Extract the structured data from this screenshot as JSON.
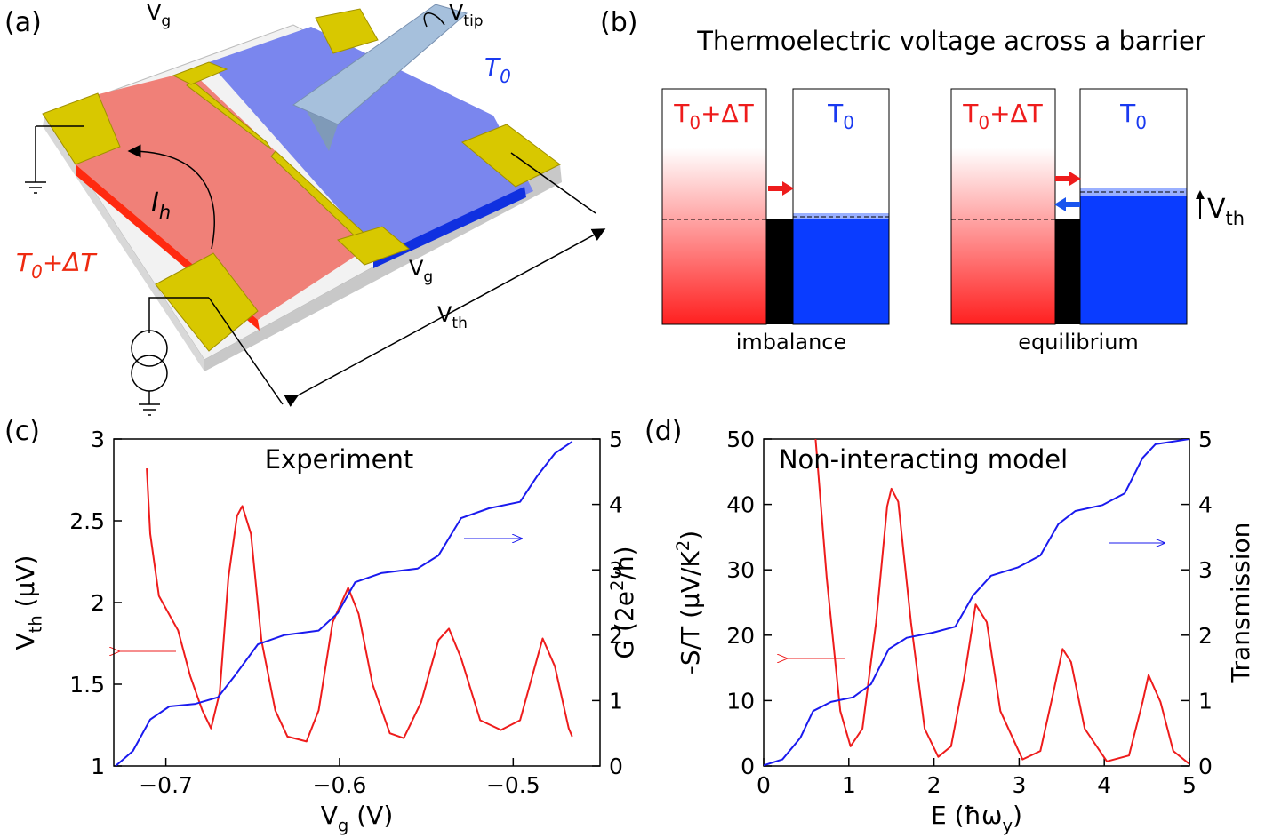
{
  "panels": {
    "a": {
      "label": "(a)",
      "gate_top": [
        "V",
        "g"
      ],
      "tip": [
        "V",
        "tip"
      ],
      "cold": [
        "T",
        "0"
      ],
      "current": [
        "I",
        "h"
      ],
      "hot": [
        "T",
        "0",
        "+ΔT"
      ],
      "gate_bottom": [
        "V",
        "g"
      ],
      "voltage": [
        "V",
        "th"
      ]
    },
    "b": {
      "label": "(b)",
      "title": "Thermoelectric voltage across a barrier",
      "left": {
        "hot": [
          "T",
          "0",
          "+ΔT"
        ],
        "cold": [
          "T",
          "0"
        ],
        "caption": "imbalance"
      },
      "right": {
        "hot": [
          "T",
          "0",
          "+ΔT"
        ],
        "cold": [
          "T",
          "0"
        ],
        "voltage": [
          "V",
          "th"
        ],
        "caption": "equilibrium"
      }
    }
  },
  "chart_data": [
    {
      "type": "line",
      "label": "(c)",
      "annotation": "Experiment",
      "xlabel": [
        "V",
        "g",
        " (V)"
      ],
      "ylabel": [
        "V",
        "th",
        " (µV)"
      ],
      "y2label": [
        "G (2e",
        "2",
        "/h)"
      ],
      "xlim": [
        -0.73,
        -0.45
      ],
      "xticks": [
        {
          "value": -0.7,
          "label": "−0.7"
        },
        {
          "value": -0.6,
          "label": "−0.6"
        },
        {
          "value": -0.5,
          "label": "−0.5"
        }
      ],
      "ylim": [
        1,
        3
      ],
      "yticks": [
        1,
        1.5,
        2,
        2.5,
        3
      ],
      "y2lim": [
        0,
        5
      ],
      "y2ticks": [
        0,
        1,
        2,
        3,
        4,
        5
      ],
      "series": [
        {
          "color": "#ee1c1c",
          "x": [
            -0.711,
            -0.709,
            -0.704,
            -0.693,
            -0.686,
            -0.679,
            -0.674,
            -0.669,
            -0.664,
            -0.659,
            -0.656,
            -0.651,
            -0.645,
            -0.637,
            -0.63,
            -0.619,
            -0.612,
            -0.604,
            -0.595,
            -0.589,
            -0.581,
            -0.571,
            -0.563,
            -0.553,
            -0.543,
            -0.537,
            -0.53,
            -0.519,
            -0.507,
            -0.496,
            -0.489,
            -0.483,
            -0.476,
            -0.468,
            -0.466
          ],
          "values": [
            2.82,
            2.42,
            2.04,
            1.83,
            1.55,
            1.34,
            1.23,
            1.45,
            2.15,
            2.53,
            2.59,
            2.42,
            1.77,
            1.34,
            1.18,
            1.15,
            1.34,
            1.88,
            2.09,
            1.93,
            1.5,
            1.2,
            1.17,
            1.39,
            1.77,
            1.84,
            1.66,
            1.28,
            1.22,
            1.28,
            1.55,
            1.78,
            1.61,
            1.23,
            1.18
          ]
        },
        {
          "color": "#1a1aee",
          "axis": "y2",
          "x": [
            -0.729,
            -0.719,
            -0.709,
            -0.698,
            -0.683,
            -0.67,
            -0.66,
            -0.647,
            -0.632,
            -0.612,
            -0.601,
            -0.591,
            -0.576,
            -0.555,
            -0.543,
            -0.53,
            -0.514,
            -0.496,
            -0.486,
            -0.476,
            -0.466
          ],
          "values": [
            0,
            0.23,
            0.71,
            0.91,
            0.95,
            1.05,
            1.39,
            1.86,
            2.0,
            2.07,
            2.34,
            2.81,
            2.95,
            3.02,
            3.22,
            3.79,
            3.94,
            4.04,
            4.44,
            4.78,
            4.96
          ]
        }
      ]
    },
    {
      "type": "line",
      "label": "(d)",
      "annotation": "Non-interacting model",
      "xlabel": [
        "E (ħω",
        "y",
        ")"
      ],
      "ylabel": [
        "-S/T (µV/K",
        "2",
        ")"
      ],
      "y2label": [
        "Transmission"
      ],
      "xlim": [
        0,
        5
      ],
      "xticks": [
        0,
        1,
        2,
        3,
        4,
        5
      ],
      "ylim": [
        0,
        50
      ],
      "yticks": [
        0,
        10,
        20,
        30,
        40,
        50
      ],
      "y2lim": [
        0,
        5
      ],
      "y2ticks": [
        0,
        1,
        2,
        3,
        4,
        5
      ],
      "series": [
        {
          "color": "#ee1c1c",
          "x": [
            0.61,
            0.74,
            0.9,
            1.02,
            1.16,
            1.32,
            1.45,
            1.5,
            1.58,
            1.73,
            1.89,
            2.05,
            2.2,
            2.36,
            2.49,
            2.62,
            2.78,
            3.04,
            3.25,
            3.4,
            3.51,
            3.61,
            3.77,
            4.03,
            4.29,
            4.45,
            4.52,
            4.66,
            4.81,
            5
          ],
          "values": [
            50,
            28.8,
            8.4,
            3,
            5.7,
            22,
            39.7,
            42.4,
            40.4,
            22,
            5.7,
            1.4,
            3,
            13.9,
            24.7,
            22,
            8.4,
            1,
            2.3,
            11.1,
            17.9,
            15.9,
            5.7,
            0.7,
            1.6,
            9.8,
            13.9,
            9.8,
            2.3,
            0.3
          ]
        },
        {
          "color": "#1a1aee",
          "axis": "y2",
          "x": [
            0,
            0.22,
            0.43,
            0.58,
            0.79,
            1.05,
            1.26,
            1.47,
            1.68,
            1.99,
            2.25,
            2.46,
            2.67,
            2.99,
            3.25,
            3.46,
            3.66,
            3.98,
            4.24,
            4.45,
            4.6,
            5
          ],
          "values": [
            0.01,
            0.1,
            0.43,
            0.84,
            0.98,
            1.05,
            1.25,
            1.79,
            1.96,
            2.04,
            2.13,
            2.61,
            2.91,
            3.04,
            3.22,
            3.7,
            3.9,
            3.99,
            4.17,
            4.71,
            4.92,
            5
          ]
        }
      ]
    }
  ]
}
